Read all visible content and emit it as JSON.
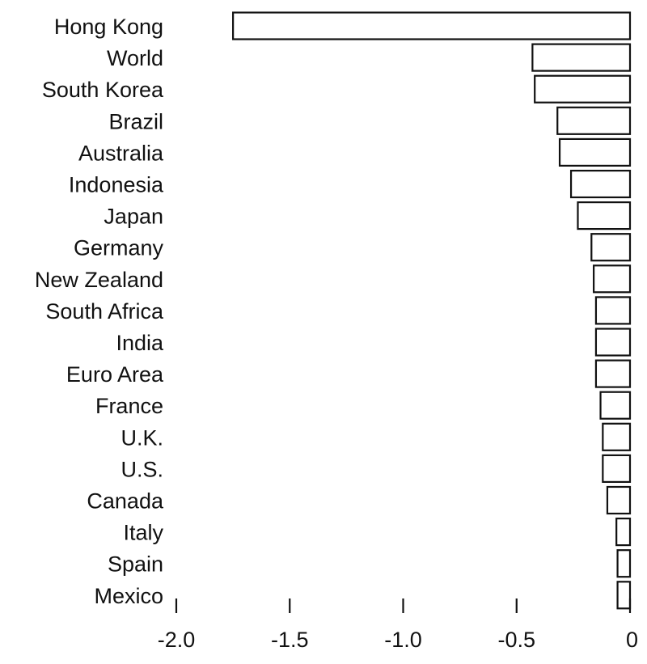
{
  "chart_data": {
    "type": "bar",
    "orientation": "horizontal",
    "title": "",
    "xlabel": "",
    "ylabel": "",
    "categories": [
      "Hong Kong",
      "World",
      "South Korea",
      "Brazil",
      "Australia",
      "Indonesia",
      "Japan",
      "Germany",
      "New Zealand",
      "South Africa",
      "India",
      "Euro Area",
      "France",
      "U.K.",
      "U.S.",
      "Canada",
      "Italy",
      "Spain",
      "Mexico"
    ],
    "values": [
      -1.75,
      -0.43,
      -0.42,
      -0.32,
      -0.31,
      -0.26,
      -0.23,
      -0.17,
      -0.16,
      -0.15,
      -0.15,
      -0.15,
      -0.13,
      -0.12,
      -0.12,
      -0.1,
      -0.06,
      -0.055,
      -0.055
    ],
    "xlim": [
      -2.0,
      0
    ],
    "xticks": [
      -2.0,
      -1.5,
      -1.0,
      -0.5,
      0
    ],
    "xtick_labels": [
      "-2.0",
      "-1.5",
      "-1.0",
      "-0.5",
      "0"
    ],
    "grid": false,
    "legend": "none",
    "colors": {
      "bar_fill": "#ffffff",
      "bar_stroke": "#111111",
      "text": "#111111"
    }
  }
}
